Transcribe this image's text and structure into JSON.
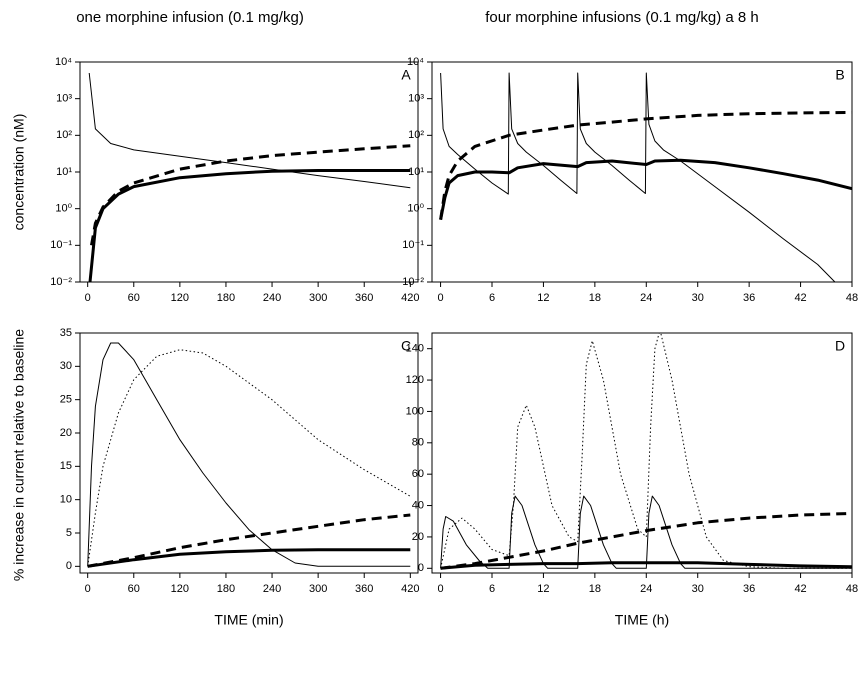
{
  "chart_data": [
    {
      "type": "line",
      "panel": "A",
      "title": "one morphine infusion (0.1 mg/kg)",
      "ylabel": "concentration (nM)",
      "yscale": "log",
      "xlim": [
        -10,
        430
      ],
      "ylim": [
        0.01,
        10000
      ],
      "xticks": [
        0,
        60,
        120,
        180,
        240,
        300,
        360,
        420
      ],
      "yticks": [
        {
          "value": 0.01,
          "label": "10⁻²"
        },
        {
          "value": 0.1,
          "label": "10⁻¹"
        },
        {
          "value": 1,
          "label": "10⁰"
        },
        {
          "value": 10,
          "label": "10¹"
        },
        {
          "value": 100,
          "label": "10²"
        },
        {
          "value": 1000,
          "label": "10³"
        },
        {
          "value": 10000,
          "label": "10⁴"
        }
      ],
      "series": [
        {
          "color": "#000000",
          "line_style": "solid",
          "line_width": 1,
          "x": [
            2,
            10,
            30,
            60,
            120,
            180,
            240,
            300,
            360,
            420
          ],
          "values": [
            5000,
            150,
            60,
            40,
            27,
            18,
            12,
            8,
            5.5,
            3.7
          ]
        },
        {
          "color": "#000000",
          "line_style": "solid",
          "line_width": 3,
          "x": [
            3,
            10,
            20,
            40,
            60,
            120,
            180,
            240,
            300,
            360,
            420
          ],
          "values": [
            0.01,
            0.3,
            1.0,
            2.5,
            4,
            7,
            9,
            10.5,
            11,
            11,
            11
          ]
        },
        {
          "color": "#000000",
          "line_style": "dashed",
          "line_width": 3,
          "x": [
            5,
            10,
            20,
            40,
            60,
            120,
            180,
            240,
            300,
            360,
            420
          ],
          "values": [
            0.1,
            0.4,
            1.1,
            3,
            5,
            12,
            20,
            28,
            35,
            43,
            52
          ]
        }
      ]
    },
    {
      "type": "line",
      "panel": "B",
      "title": "four morphine infusions (0.1 mg/kg) a 8 h",
      "yscale": "log",
      "xlim": [
        -1,
        48
      ],
      "ylim": [
        0.01,
        10000
      ],
      "xticks": [
        0,
        6,
        12,
        18,
        24,
        30,
        36,
        42,
        48
      ],
      "yticks": [
        {
          "value": 0.01,
          "label": "10⁻²"
        },
        {
          "value": 0.1,
          "label": "10⁻¹"
        },
        {
          "value": 1,
          "label": "10⁰"
        },
        {
          "value": 10,
          "label": "10¹"
        },
        {
          "value": 100,
          "label": "10²"
        },
        {
          "value": 1000,
          "label": "10³"
        },
        {
          "value": 10000,
          "label": "10⁴"
        }
      ],
      "series": [
        {
          "color": "#000000",
          "line_style": "solid",
          "line_width": 1,
          "x": [
            0,
            0.3,
            1,
            2,
            4,
            6,
            7.9,
            8,
            8.3,
            9,
            10,
            12,
            14,
            15.9,
            16,
            16.3,
            17,
            18,
            20,
            22,
            23.9,
            24,
            24.3,
            25,
            26,
            28,
            32,
            36,
            40,
            44,
            46
          ],
          "values": [
            5000,
            150,
            50,
            30,
            12,
            5,
            2.5,
            5000,
            150,
            60,
            35,
            15,
            6,
            2.6,
            5000,
            150,
            60,
            35,
            15,
            6,
            2.6,
            5000,
            200,
            70,
            40,
            20,
            4,
            0.8,
            0.15,
            0.03,
            0.01
          ]
        },
        {
          "color": "#000000",
          "line_style": "solid",
          "line_width": 3,
          "x": [
            0,
            0.5,
            1,
            2,
            4,
            6,
            8,
            9,
            12,
            16,
            17,
            20,
            24,
            25,
            28,
            32,
            36,
            40,
            44,
            48
          ],
          "values": [
            0.5,
            2,
            5,
            8,
            10,
            10,
            9.5,
            13,
            17,
            14,
            18,
            20,
            16,
            20,
            21,
            18,
            13,
            9,
            6,
            3.5
          ]
        },
        {
          "color": "#000000",
          "line_style": "dashed",
          "line_width": 3,
          "x": [
            0,
            0.5,
            1,
            2,
            4,
            8,
            12,
            16,
            20,
            24,
            30,
            36,
            42,
            48
          ],
          "values": [
            0.5,
            3,
            8,
            20,
            50,
            100,
            140,
            190,
            230,
            280,
            350,
            390,
            410,
            420
          ]
        }
      ]
    },
    {
      "type": "line",
      "panel": "C",
      "ylabel": "% increase in current relative to baseline",
      "xlabel": "TIME (min)",
      "xlim": [
        -10,
        430
      ],
      "ylim": [
        -1,
        35
      ],
      "xticks": [
        0,
        60,
        120,
        180,
        240,
        300,
        360,
        420
      ],
      "yticks": [
        0,
        5,
        10,
        15,
        20,
        25,
        30,
        35
      ],
      "series": [
        {
          "color": "#000000",
          "line_style": "solid",
          "line_width": 1,
          "x": [
            0,
            5,
            10,
            20,
            30,
            40,
            60,
            90,
            120,
            150,
            180,
            210,
            240,
            270,
            300,
            420
          ],
          "values": [
            0,
            15,
            24,
            31,
            33.5,
            33.5,
            31,
            25,
            19,
            14,
            9.5,
            5.5,
            2.5,
            0.5,
            0,
            0
          ]
        },
        {
          "color": "#000000",
          "line_style": "dotted",
          "line_width": 1,
          "x": [
            0,
            10,
            20,
            40,
            60,
            90,
            120,
            150,
            180,
            240,
            300,
            360,
            420
          ],
          "values": [
            0,
            8,
            15,
            23,
            28,
            31.5,
            32.5,
            32,
            30,
            25,
            19,
            14.5,
            10.5
          ]
        },
        {
          "color": "#000000",
          "line_style": "dashed",
          "line_width": 3,
          "x": [
            0,
            60,
            120,
            180,
            240,
            300,
            360,
            420
          ],
          "values": [
            0,
            1.3,
            2.8,
            4,
            5,
            6,
            7,
            7.7
          ]
        },
        {
          "color": "#000000",
          "line_style": "solid",
          "line_width": 3,
          "x": [
            0,
            60,
            120,
            180,
            240,
            300,
            360,
            420
          ],
          "values": [
            0,
            1,
            1.8,
            2.2,
            2.4,
            2.5,
            2.5,
            2.5
          ]
        }
      ]
    },
    {
      "type": "line",
      "panel": "D",
      "xlabel": "TIME (h)",
      "xlim": [
        -1,
        48
      ],
      "ylim": [
        -3,
        150
      ],
      "xticks": [
        0,
        6,
        12,
        18,
        24,
        30,
        36,
        42,
        48
      ],
      "yticks": [
        0,
        20,
        40,
        60,
        80,
        100,
        120,
        140
      ],
      "series": [
        {
          "color": "#000000",
          "line_style": "solid",
          "line_width": 1,
          "x": [
            0,
            0.3,
            0.6,
            1.5,
            3,
            4.5,
            5.5,
            8,
            8.3,
            8.7,
            9.5,
            11,
            12,
            12.5,
            16,
            16.3,
            16.7,
            17.5,
            19,
            20,
            20.5,
            24,
            24.3,
            24.7,
            25.5,
            27,
            28,
            28.5,
            48
          ],
          "values": [
            0,
            25,
            33,
            30,
            15,
            5,
            0,
            0,
            35,
            46,
            40,
            15,
            3,
            0,
            0,
            35,
            46,
            40,
            15,
            3,
            0,
            0,
            35,
            46,
            40,
            15,
            3,
            0,
            0
          ]
        },
        {
          "color": "#000000",
          "line_style": "dotted",
          "line_width": 1,
          "x": [
            0,
            1,
            2.5,
            4,
            6,
            8,
            8.5,
            9,
            10,
            11,
            13,
            15,
            16,
            16.5,
            17,
            17.7,
            19,
            21,
            23,
            24,
            24.5,
            25,
            25.6,
            27,
            29,
            31,
            33,
            36,
            40,
            44,
            48
          ],
          "values": [
            0,
            25,
            32,
            25,
            12,
            8,
            40,
            90,
            104,
            90,
            40,
            20,
            17,
            70,
            130,
            145,
            120,
            60,
            25,
            20,
            90,
            140,
            152,
            120,
            60,
            20,
            5,
            1,
            0,
            0,
            0
          ]
        },
        {
          "color": "#000000",
          "line_style": "dashed",
          "line_width": 3,
          "x": [
            0,
            4,
            8,
            12,
            16,
            20,
            24,
            30,
            36,
            42,
            48
          ],
          "values": [
            0,
            3,
            7,
            11,
            16,
            20,
            24,
            29,
            32,
            34,
            35
          ]
        },
        {
          "color": "#000000",
          "line_style": "solid",
          "line_width": 3,
          "x": [
            0,
            4,
            8,
            12,
            16,
            20,
            24,
            30,
            36,
            42,
            48
          ],
          "values": [
            0,
            2,
            2.5,
            3,
            3,
            3.5,
            3.5,
            3.5,
            2.5,
            1.5,
            1
          ]
        }
      ]
    }
  ]
}
